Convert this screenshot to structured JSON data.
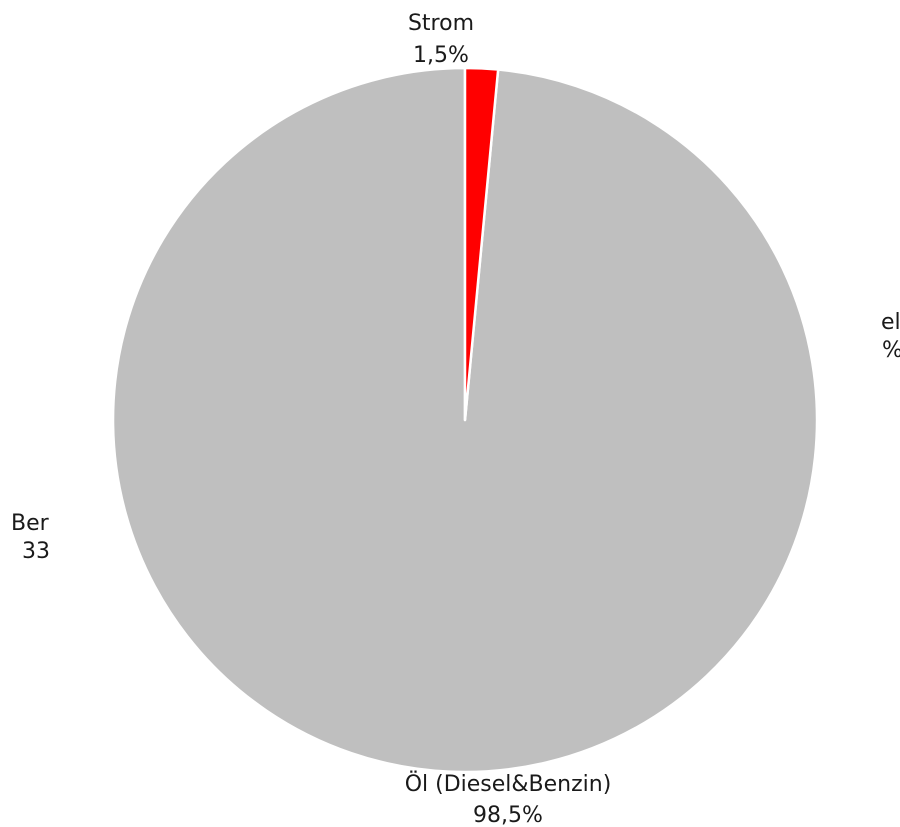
{
  "chart_data": {
    "type": "pie",
    "slices": [
      {
        "name": "Öl (Diesel&Benzin)",
        "value": 98.5,
        "value_label": "98,5%",
        "color": "#bfbfbf"
      },
      {
        "name": "Strom",
        "value": 1.5,
        "value_label": "1,5%",
        "color": "#ff0000"
      }
    ],
    "start_angle_deg": 0,
    "direction": "counterclockwise",
    "slice_border_color": "#ffffff",
    "legend": "none",
    "clipped_text_fragments": [
      {
        "line1": "el",
        "line2": "%"
      },
      {
        "line1": "Ber",
        "line2": "33"
      }
    ]
  }
}
